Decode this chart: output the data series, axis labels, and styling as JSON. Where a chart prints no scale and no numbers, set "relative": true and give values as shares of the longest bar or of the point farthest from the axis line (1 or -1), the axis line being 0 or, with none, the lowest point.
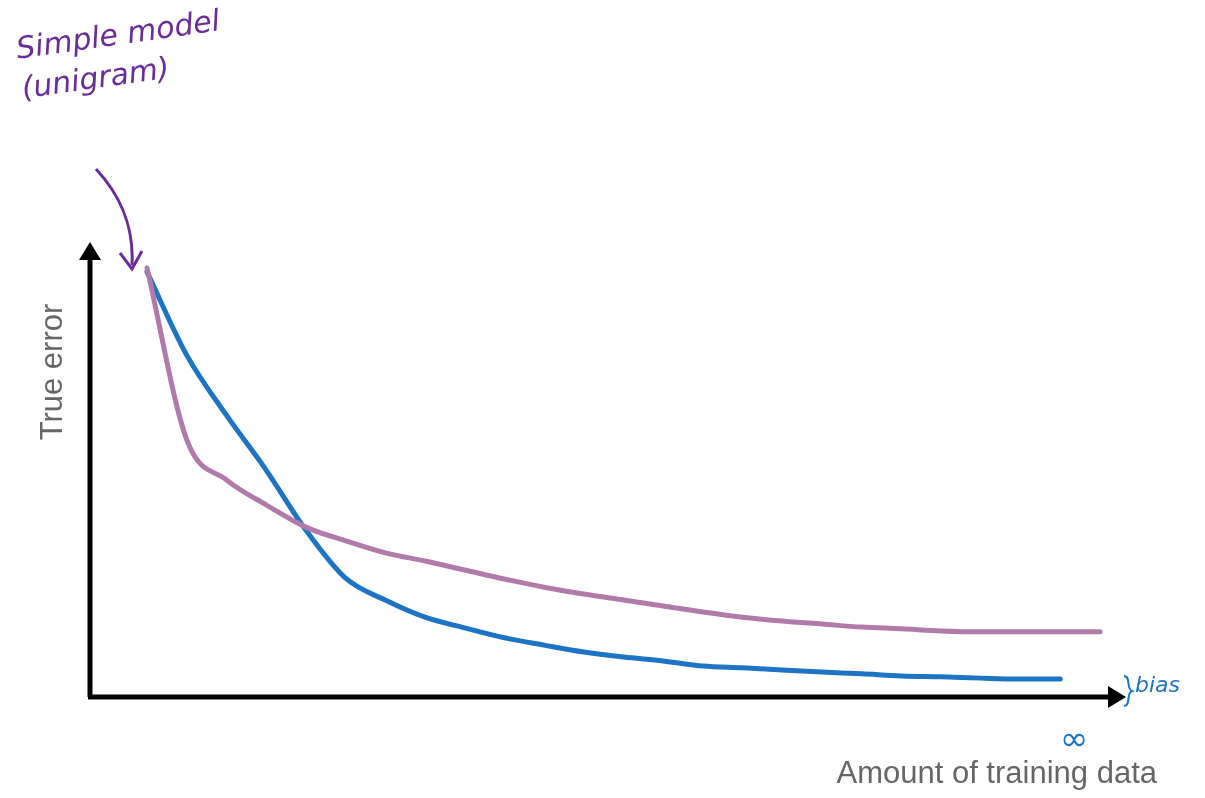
{
  "chart_data": {
    "type": "line",
    "xlabel": "Amount of training data",
    "ylabel": "True error",
    "relative": true,
    "legend": false,
    "tick_labels": false,
    "marker": "none",
    "line_style": "solid",
    "categories": [
      null,
      null,
      null,
      null,
      null,
      null,
      null,
      null,
      null,
      null,
      null,
      null,
      null,
      null,
      null,
      null,
      null,
      null,
      null,
      null,
      null,
      null,
      null,
      null,
      null
    ],
    "series": [
      {
        "color": "#b27aab",
        "values": [
          1,
          0.6,
          0.506,
          0.448,
          0.396,
          0.364,
          0.336,
          0.317,
          0.296,
          0.275,
          0.256,
          0.24,
          0.226,
          0.212,
          0.198,
          0.186,
          0.177,
          0.17,
          0.163,
          0.159,
          0.154,
          0.152,
          0.152,
          0.152,
          0.152
        ]
      },
      {
        "color": "#1d74c4",
        "values": [
          0.991,
          0.797,
          0.657,
          0.529,
          0.389,
          0.277,
          0.226,
          0.186,
          0.161,
          0.138,
          0.121,
          0.105,
          0.093,
          0.084,
          0.072,
          0.068,
          0.063,
          0.058,
          0.054,
          0.049,
          0.047,
          0.044,
          0.042,
          0.042,
          null
        ]
      }
    ],
    "annotations": [
      "Simple model (unigram)",
      "bias",
      "∞"
    ]
  }
}
